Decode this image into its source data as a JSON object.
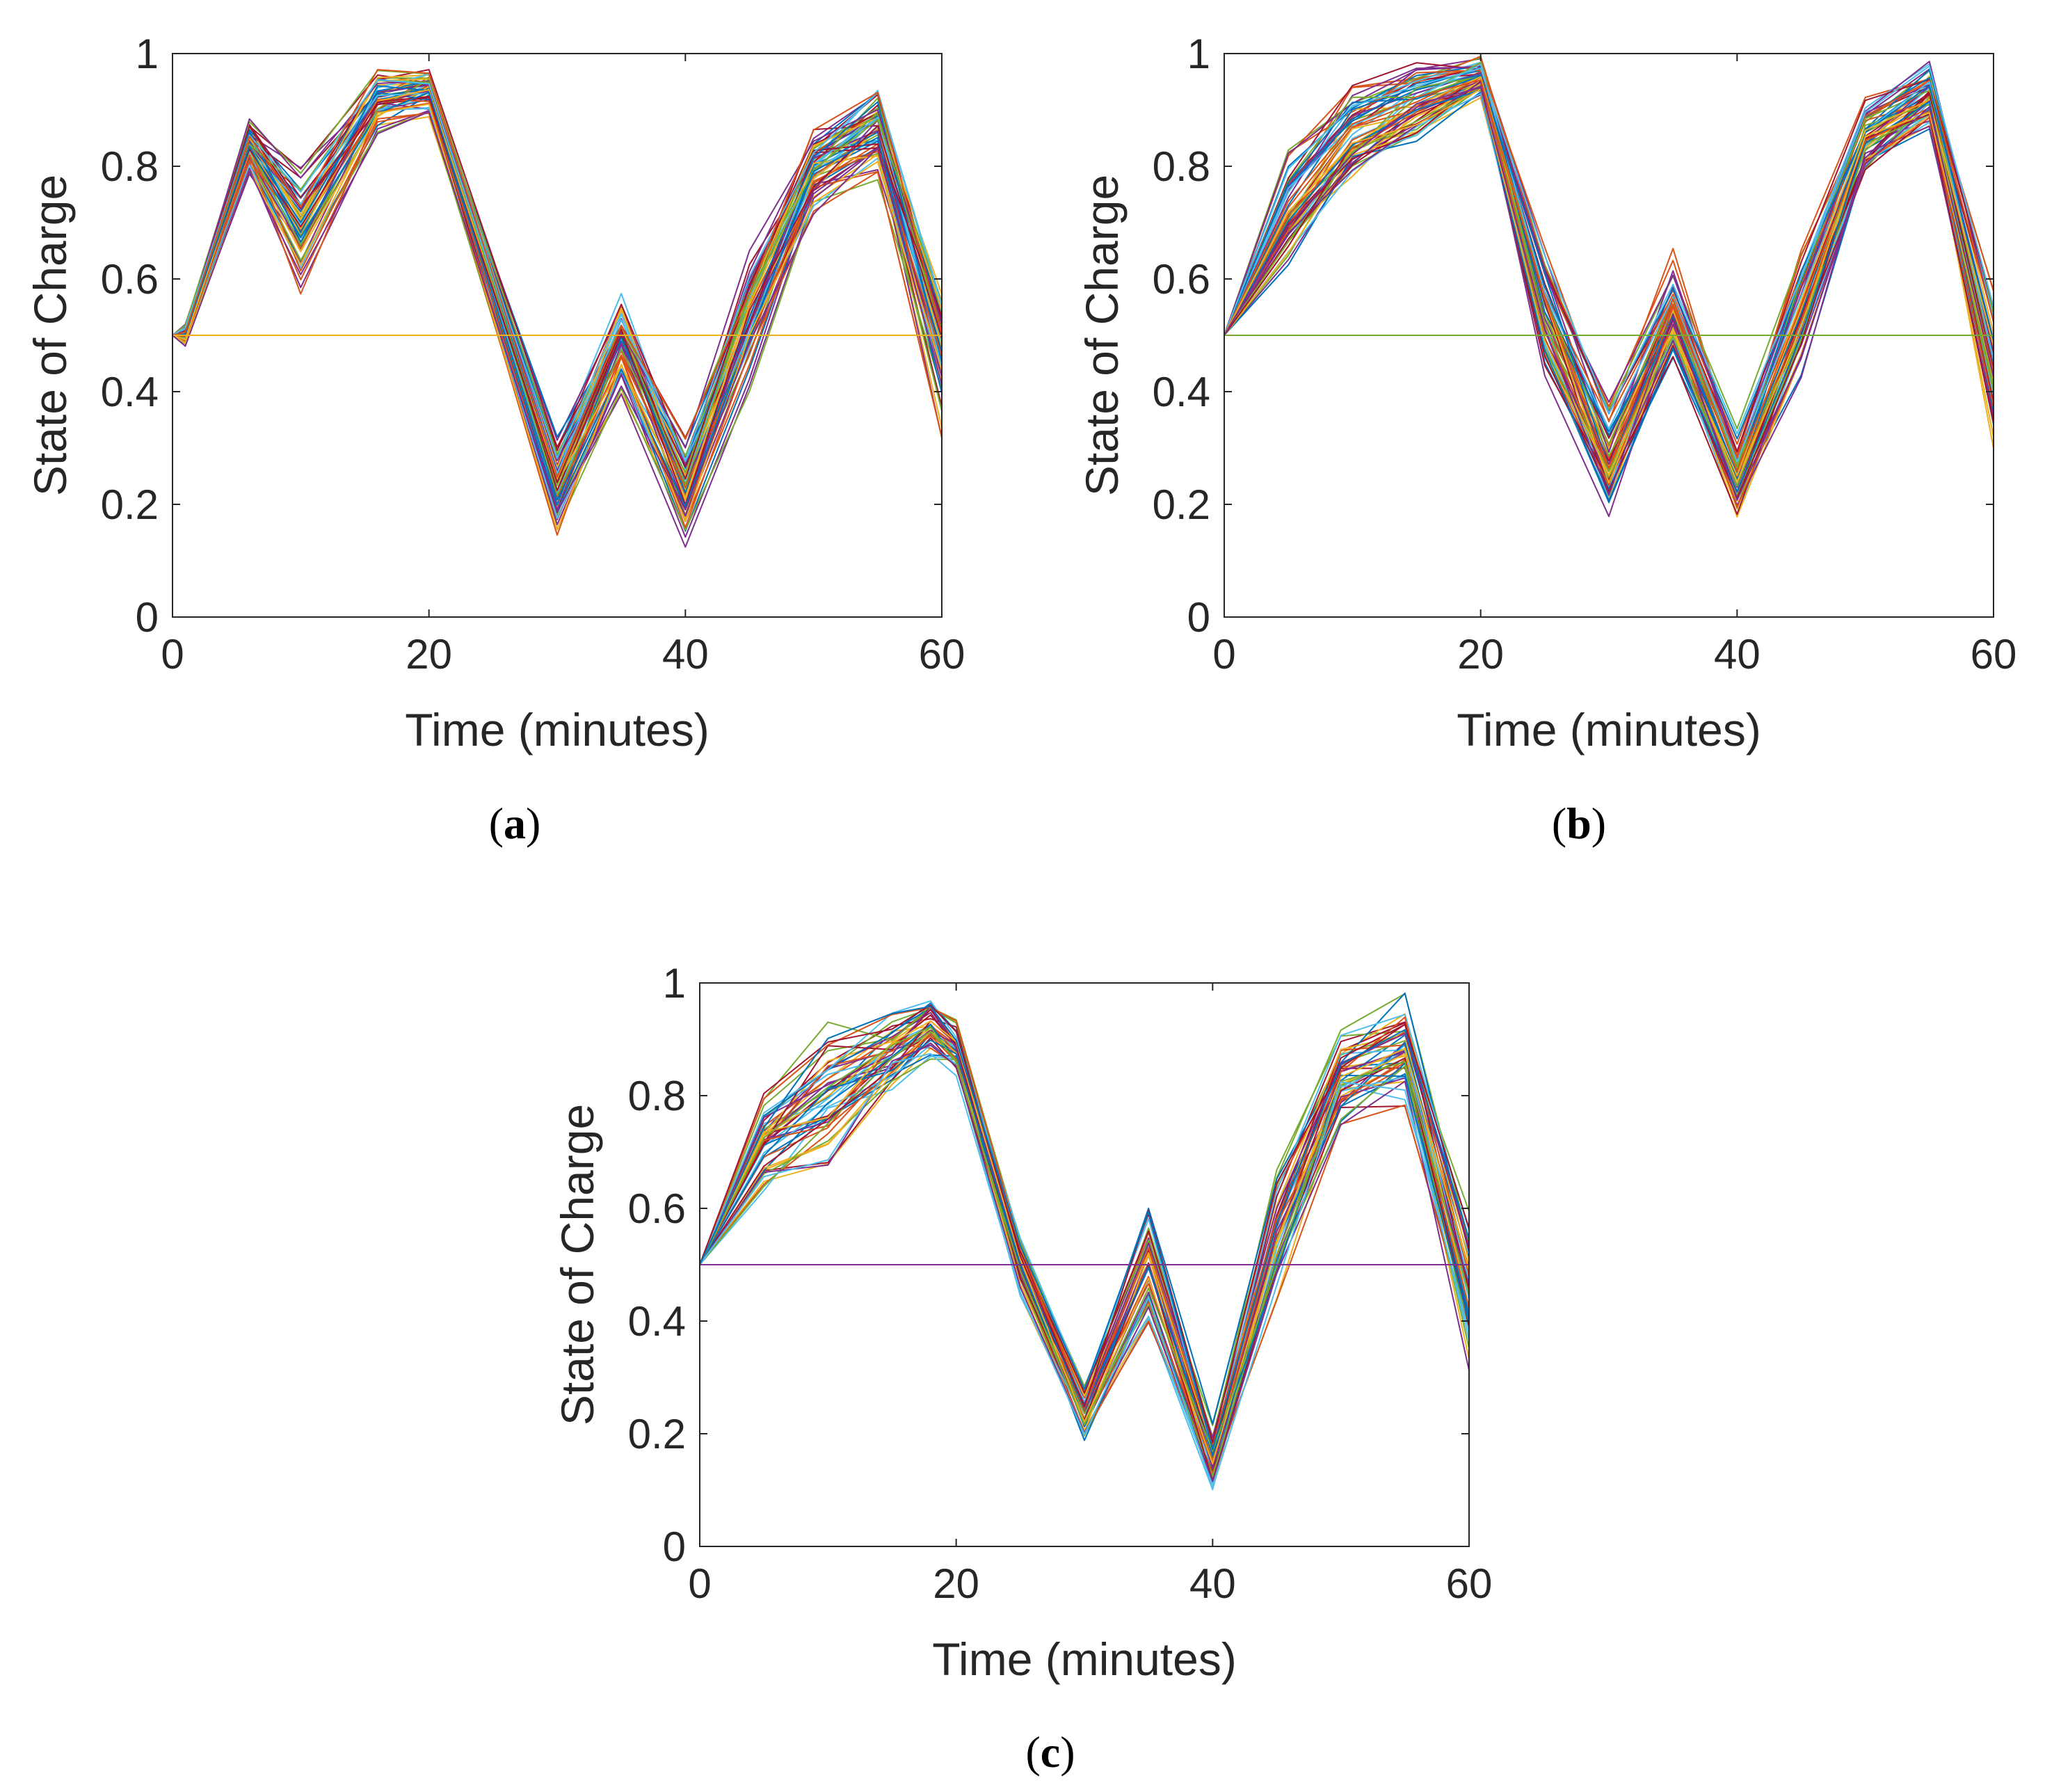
{
  "colors": {
    "axis": "#262626",
    "palette": [
      "#0072BD",
      "#D95319",
      "#EDB120",
      "#7E2F8E",
      "#77AC30",
      "#4DBEEE",
      "#A2142F"
    ]
  },
  "chart_data": [
    {
      "type": "line",
      "panel": "a",
      "caption": "a",
      "xlabel": "Time (minutes)",
      "ylabel": "State of Charge",
      "xlim": [
        0,
        60
      ],
      "ylim": [
        0,
        1
      ],
      "xticks": [
        "0",
        "20",
        "40",
        "60"
      ],
      "yticks": [
        "0",
        "0.2",
        "0.4",
        "0.6",
        "0.8",
        "1"
      ],
      "series_count": 60,
      "flat_line": {
        "value": 0.5,
        "color": "#EDB120"
      },
      "x": [
        0,
        1,
        6,
        10,
        16,
        20,
        30,
        35,
        40,
        45,
        50,
        55,
        60
      ],
      "envelope": {
        "center": [
          0.5,
          0.5,
          0.83,
          0.68,
          0.91,
          0.93,
          0.22,
          0.48,
          0.22,
          0.52,
          0.78,
          0.85,
          0.45
        ],
        "spread": [
          0.0,
          0.02,
          0.05,
          0.12,
          0.06,
          0.05,
          0.1,
          0.09,
          0.1,
          0.12,
          0.09,
          0.08,
          0.15
        ]
      }
    },
    {
      "type": "line",
      "panel": "b",
      "caption": "b",
      "xlabel": "Time (minutes)",
      "ylabel": "State of Charge",
      "xlim": [
        0,
        60
      ],
      "ylim": [
        0,
        1
      ],
      "xticks": [
        "0",
        "20",
        "40",
        "60"
      ],
      "yticks": [
        "0",
        "0.2",
        "0.4",
        "0.6",
        "0.8",
        "1"
      ],
      "series_count": 60,
      "flat_line": {
        "value": 0.5,
        "color": "#77AC30"
      },
      "x": [
        0,
        5,
        10,
        15,
        20,
        25,
        30,
        35,
        40,
        45,
        50,
        55,
        60
      ],
      "envelope": {
        "center": [
          0.5,
          0.72,
          0.86,
          0.92,
          0.96,
          0.55,
          0.28,
          0.55,
          0.25,
          0.55,
          0.85,
          0.93,
          0.45
        ],
        "spread": [
          0.0,
          0.1,
          0.1,
          0.07,
          0.04,
          0.12,
          0.1,
          0.1,
          0.08,
          0.12,
          0.07,
          0.06,
          0.15
        ]
      }
    },
    {
      "type": "line",
      "panel": "c",
      "caption": "c",
      "xlabel": "Time (minutes)",
      "ylabel": "State of Charge",
      "xlim": [
        0,
        60
      ],
      "ylim": [
        0,
        1
      ],
      "xticks": [
        "0",
        "20",
        "40",
        "60"
      ],
      "yticks": [
        "0",
        "0.2",
        "0.4",
        "0.6",
        "0.8",
        "1"
      ],
      "series_count": 50,
      "flat_line": {
        "value": 0.5,
        "color": "#7E2F8E"
      },
      "x": [
        0,
        5,
        10,
        15,
        18,
        20,
        25,
        30,
        35,
        40,
        45,
        50,
        55,
        60
      ],
      "envelope": {
        "center": [
          0.5,
          0.72,
          0.8,
          0.88,
          0.92,
          0.88,
          0.5,
          0.24,
          0.5,
          0.15,
          0.55,
          0.83,
          0.88,
          0.45
        ],
        "spread": [
          0.0,
          0.1,
          0.14,
          0.08,
          0.06,
          0.06,
          0.06,
          0.06,
          0.12,
          0.07,
          0.12,
          0.09,
          0.1,
          0.15
        ]
      }
    }
  ]
}
